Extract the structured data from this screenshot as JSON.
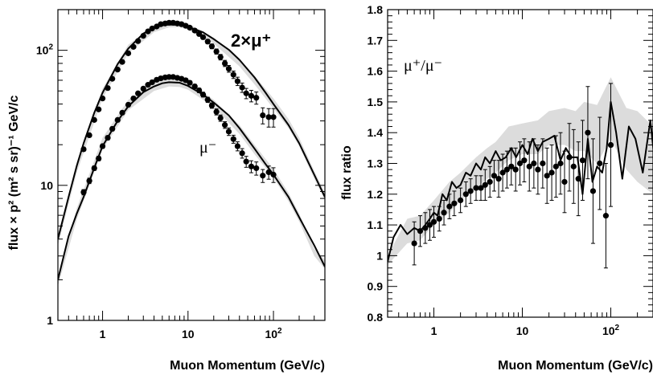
{
  "chart_data": [
    {
      "type": "line",
      "title": "",
      "xlabel": "Muon Momentum (GeV/c)",
      "ylabel": "flux × p² (m² s sr)⁻¹ GeV/c",
      "x_scale": "log",
      "y_scale": "log",
      "xlim": [
        0.3,
        400
      ],
      "ylim": [
        1,
        200
      ],
      "x_tick_labels": [
        "1",
        "10",
        "10²"
      ],
      "y_tick_labels": [
        "1",
        "10",
        "10²"
      ],
      "grid": false,
      "annotations": [
        "2×μ⁺",
        "μ⁻"
      ],
      "series": [
        {
          "style": "band",
          "x": [
            0.3,
            0.5,
            1,
            2,
            4,
            6,
            8,
            10,
            20,
            40,
            60,
            100,
            150,
            200,
            300,
            400
          ],
          "upper": [
            4.3,
            15,
            52,
            110,
            153,
            166,
            165,
            158,
            124,
            86,
            65,
            44,
            31,
            22.5,
            12.8,
            8.8
          ],
          "lower": [
            3.6,
            12.5,
            44,
            95,
            136,
            148,
            148,
            142,
            112,
            76,
            56,
            37,
            26.5,
            19.5,
            11.2,
            7.8
          ]
        },
        {
          "style": "line",
          "x": [
            0.3,
            0.4,
            0.5,
            0.6,
            0.8,
            1,
            1.5,
            2,
            3,
            4,
            5,
            6,
            8,
            10,
            15,
            20,
            30,
            40,
            60,
            80,
            100,
            150,
            200,
            300,
            400
          ],
          "y": [
            4,
            8.2,
            14,
            20.5,
            34.5,
            48.5,
            79,
            103,
            133,
            147,
            153,
            155,
            154,
            149,
            136,
            121,
            101,
            85,
            63,
            49,
            40,
            28,
            20.5,
            12,
            8.2
          ]
        },
        {
          "style": "points",
          "x": [
            0.6,
            0.7,
            0.8,
            0.9,
            1.0,
            1.15,
            1.3,
            1.5,
            1.7,
            2.0,
            2.3,
            2.6,
            3.0,
            3.4,
            3.8,
            4.3,
            4.8,
            5.4,
            6.0,
            6.7,
            7.5,
            8.4,
            9.4,
            10.5,
            12,
            13.5,
            15,
            17,
            19,
            21.5,
            24,
            27,
            30,
            34,
            38,
            43,
            48,
            55,
            63,
            75,
            88,
            100
          ],
          "y": [
            18.5,
            23.5,
            30.5,
            36.5,
            44,
            52.5,
            61.5,
            72,
            82,
            95,
            106,
            117,
            128,
            138,
            145,
            150,
            156,
            158,
            160,
            160,
            158,
            156,
            152,
            147,
            140,
            132,
            125,
            116,
            107,
            98,
            89,
            80,
            73,
            66,
            59,
            53,
            48,
            46,
            44.5,
            33,
            32,
            32
          ],
          "yerr": [
            0.6,
            0.7,
            0.9,
            1,
            1.2,
            1.4,
            1.6,
            1.9,
            2.1,
            2.5,
            2.7,
            3,
            3.3,
            3.6,
            3.8,
            3.9,
            4,
            4.2,
            4.3,
            4.3,
            4.3,
            4.3,
            4.3,
            4.3,
            4.3,
            4.3,
            4.3,
            4.3,
            4.3,
            4.3,
            4.2,
            4.2,
            4.2,
            4.2,
            4.2,
            4.2,
            4.2,
            4.5,
            4.6,
            4.5,
            5,
            5
          ]
        },
        {
          "style": "band",
          "x": [
            0.3,
            0.5,
            1,
            2,
            4,
            6,
            8,
            10,
            20,
            40,
            60,
            100,
            150,
            200,
            300,
            400
          ],
          "upper": [
            2.1,
            6.8,
            22.5,
            43,
            58,
            62,
            61.5,
            59,
            43,
            28,
            20,
            13.2,
            8.8,
            6.2,
            3.4,
            2.8
          ],
          "lower": [
            1.8,
            5.6,
            18.5,
            36,
            50,
            54,
            53.5,
            51,
            38,
            24,
            17,
            11.4,
            7.6,
            5.4,
            3.0,
            2.4
          ]
        },
        {
          "style": "line",
          "x": [
            0.3,
            0.4,
            0.5,
            0.6,
            0.8,
            1,
            1.5,
            2,
            3,
            4,
            5,
            6,
            8,
            10,
            15,
            20,
            30,
            40,
            60,
            80,
            100,
            150,
            200,
            300,
            400
          ],
          "y": [
            2,
            4.2,
            6.2,
            8.2,
            13.5,
            19.5,
            30,
            38.5,
            49,
            54,
            57,
            58,
            57.5,
            54.5,
            47,
            41,
            33,
            26.5,
            18.7,
            14.5,
            12,
            8.2,
            5.8,
            3.6,
            2.5
          ]
        },
        {
          "style": "points",
          "x": [
            0.6,
            0.7,
            0.8,
            0.9,
            1.0,
            1.15,
            1.3,
            1.5,
            1.7,
            2.0,
            2.3,
            2.6,
            3.0,
            3.4,
            3.8,
            4.3,
            4.8,
            5.4,
            6.0,
            6.7,
            7.5,
            8.4,
            9.4,
            10.5,
            12,
            13.5,
            15,
            17,
            19,
            21.5,
            24,
            27,
            30,
            34,
            38,
            43,
            48,
            55,
            63,
            75,
            88,
            100
          ],
          "y": [
            8.9,
            10.8,
            13.4,
            15.8,
            19.5,
            22.5,
            26.2,
            30.5,
            34.5,
            39.5,
            44,
            48,
            52,
            55.5,
            58,
            60.5,
            62,
            63,
            63.5,
            63.5,
            62.5,
            61.5,
            60,
            57.5,
            54,
            50.5,
            47,
            43,
            39,
            35,
            31.5,
            28,
            25,
            22,
            19.5,
            17.3,
            15,
            13.8,
            13.4,
            11.8,
            12.5,
            12
          ],
          "yerr": [
            0.4,
            0.5,
            0.5,
            0.6,
            0.7,
            0.8,
            0.9,
            1.0,
            1.1,
            1.3,
            1.4,
            1.5,
            1.6,
            1.7,
            1.8,
            1.9,
            2,
            2,
            2,
            2,
            2,
            2,
            2,
            2,
            2,
            1.9,
            1.9,
            1.9,
            1.8,
            1.8,
            1.7,
            1.6,
            1.6,
            1.5,
            1.5,
            1.4,
            1.4,
            1.4,
            1.5,
            1.3,
            1.4,
            1.5
          ]
        }
      ]
    },
    {
      "type": "line",
      "title": "",
      "xlabel": "Muon Momentum (GeV/c)",
      "ylabel": "flux ratio",
      "x_scale": "log",
      "y_scale": "linear",
      "xlim": [
        0.3,
        300
      ],
      "ylim": [
        0.8,
        1.8
      ],
      "x_tick_labels": [
        "1",
        "10",
        "10²"
      ],
      "y_tick_labels": [
        "0.8",
        "0.9",
        "1",
        "1.1",
        "1.2",
        "1.3",
        "1.4",
        "1.5",
        "1.6",
        "1.7",
        "1.8"
      ],
      "grid": false,
      "annotations": [
        "μ⁺/μ⁻"
      ],
      "series": [
        {
          "style": "band",
          "x": [
            0.3,
            0.5,
            0.7,
            1,
            1.5,
            2,
            3,
            4,
            5,
            7,
            10,
            15,
            20,
            30,
            40,
            50,
            70,
            100,
            150,
            200,
            300
          ],
          "upper": [
            1.0,
            1.12,
            1.13,
            1.18,
            1.24,
            1.27,
            1.32,
            1.35,
            1.37,
            1.42,
            1.43,
            1.44,
            1.47,
            1.48,
            1.47,
            1.5,
            1.49,
            1.58,
            1.48,
            1.47,
            1.42
          ],
          "lower": [
            0.97,
            1.04,
            1.05,
            1.1,
            1.14,
            1.18,
            1.22,
            1.25,
            1.27,
            1.31,
            1.33,
            1.33,
            1.36,
            1.36,
            1.34,
            1.34,
            1.3,
            1.38,
            1.28,
            1.24,
            1.2
          ]
        },
        {
          "style": "line",
          "x": [
            0.3,
            0.35,
            0.42,
            0.5,
            0.6,
            0.7,
            0.8,
            0.9,
            1.0,
            1.1,
            1.25,
            1.4,
            1.6,
            1.8,
            2.0,
            2.3,
            2.6,
            3.0,
            3.4,
            3.8,
            4.3,
            5.0,
            5.7,
            6.5,
            7.5,
            8.5,
            10,
            11.5,
            13,
            15,
            17,
            20,
            23,
            27,
            31,
            36,
            42,
            48,
            55,
            62,
            70,
            80,
            90,
            100,
            115,
            135,
            160,
            190,
            230,
            280,
            320
          ],
          "y": [
            0.98,
            1.06,
            1.1,
            1.07,
            1.09,
            1.08,
            1.1,
            1.12,
            1.14,
            1.13,
            1.2,
            1.18,
            1.24,
            1.22,
            1.23,
            1.27,
            1.26,
            1.3,
            1.28,
            1.32,
            1.3,
            1.34,
            1.31,
            1.32,
            1.35,
            1.32,
            1.36,
            1.33,
            1.38,
            1.34,
            1.37,
            1.38,
            1.39,
            1.31,
            1.35,
            1.32,
            1.32,
            1.2,
            1.38,
            1.24,
            1.29,
            1.27,
            1.35,
            1.5,
            1.4,
            1.25,
            1.42,
            1.38,
            1.27,
            1.44,
            1.28
          ]
        },
        {
          "style": "points",
          "x": [
            0.6,
            0.7,
            0.8,
            0.9,
            1.0,
            1.15,
            1.3,
            1.5,
            1.7,
            2.0,
            2.3,
            2.6,
            3.0,
            3.4,
            3.8,
            4.3,
            4.8,
            5.4,
            6.0,
            6.7,
            7.5,
            8.4,
            9.4,
            10.5,
            12,
            13.5,
            15,
            17,
            19,
            21.5,
            24,
            27,
            30,
            34,
            38,
            43,
            48,
            55,
            63,
            75,
            88,
            100
          ],
          "y": [
            1.04,
            1.08,
            1.09,
            1.1,
            1.11,
            1.12,
            1.14,
            1.16,
            1.17,
            1.18,
            1.2,
            1.21,
            1.22,
            1.22,
            1.23,
            1.24,
            1.26,
            1.25,
            1.27,
            1.28,
            1.29,
            1.28,
            1.3,
            1.31,
            1.29,
            1.3,
            1.28,
            1.3,
            1.26,
            1.27,
            1.29,
            1.3,
            1.24,
            1.32,
            1.29,
            1.25,
            1.31,
            1.4,
            1.21,
            1.3,
            1.13,
            1.36
          ],
          "yerr": [
            0.07,
            0.05,
            0.05,
            0.05,
            0.05,
            0.04,
            0.04,
            0.04,
            0.04,
            0.04,
            0.04,
            0.04,
            0.04,
            0.04,
            0.05,
            0.05,
            0.05,
            0.06,
            0.06,
            0.06,
            0.06,
            0.07,
            0.07,
            0.07,
            0.08,
            0.08,
            0.08,
            0.08,
            0.09,
            0.09,
            0.1,
            0.1,
            0.1,
            0.11,
            0.12,
            0.12,
            0.13,
            0.15,
            0.17,
            0.15,
            0.17,
            0.2
          ]
        }
      ]
    }
  ]
}
